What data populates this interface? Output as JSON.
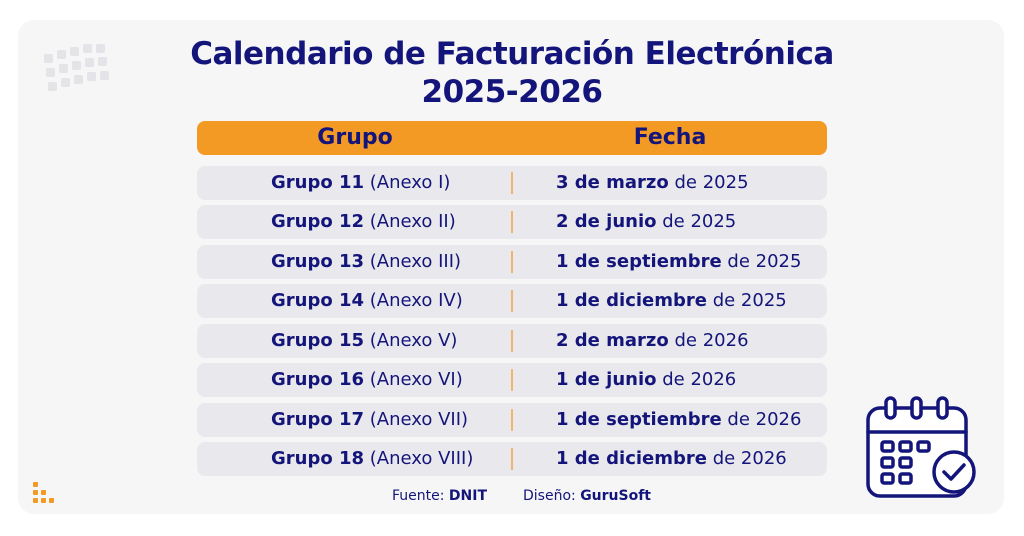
{
  "title": {
    "line1": "Calendario de Facturación Electrónica",
    "line2": "2025-2026"
  },
  "table": {
    "headers": {
      "grupo": "Grupo",
      "fecha": "Fecha"
    },
    "rows": [
      {
        "grupo_bold": "Grupo 11",
        "grupo_rest": " (Anexo I)",
        "fecha_bold": "3 de marzo",
        "fecha_rest": " de 2025"
      },
      {
        "grupo_bold": "Grupo 12",
        "grupo_rest": " (Anexo II)",
        "fecha_bold": "2 de junio",
        "fecha_rest": " de 2025"
      },
      {
        "grupo_bold": "Grupo 13",
        "grupo_rest": " (Anexo III)",
        "fecha_bold": "1 de septiembre",
        "fecha_rest": " de 2025"
      },
      {
        "grupo_bold": "Grupo 14",
        "grupo_rest": " (Anexo IV)",
        "fecha_bold": "1 de diciembre",
        "fecha_rest": " de 2025"
      },
      {
        "grupo_bold": "Grupo 15",
        "grupo_rest": " (Anexo V)",
        "fecha_bold": "2 de marzo",
        "fecha_rest": " de 2026"
      },
      {
        "grupo_bold": "Grupo 16",
        "grupo_rest": " (Anexo VI)",
        "fecha_bold": "1 de junio",
        "fecha_rest": " de 2026"
      },
      {
        "grupo_bold": "Grupo 17",
        "grupo_rest": " (Anexo VII)",
        "fecha_bold": "1 de septiembre",
        "fecha_rest": " de 2026"
      },
      {
        "grupo_bold": "Grupo 18",
        "grupo_rest": " (Anexo VIII)",
        "fecha_bold": "1 de diciembre",
        "fecha_rest": " de 2026"
      }
    ]
  },
  "footer": {
    "fuente_label": "Fuente: ",
    "fuente_value": "DNIT",
    "diseno_label": "Diseño: ",
    "diseno_value": "GuruSoft"
  },
  "icons": {
    "dot_grid": "dot-grid-icon",
    "logo": "gurusoft-logo-icon",
    "calendar": "calendar-check-icon"
  },
  "colors": {
    "navy": "#14157a",
    "orange": "#f39a24",
    "row_bg": "#e9e9ed",
    "card_bg": "#f6f6f7"
  }
}
